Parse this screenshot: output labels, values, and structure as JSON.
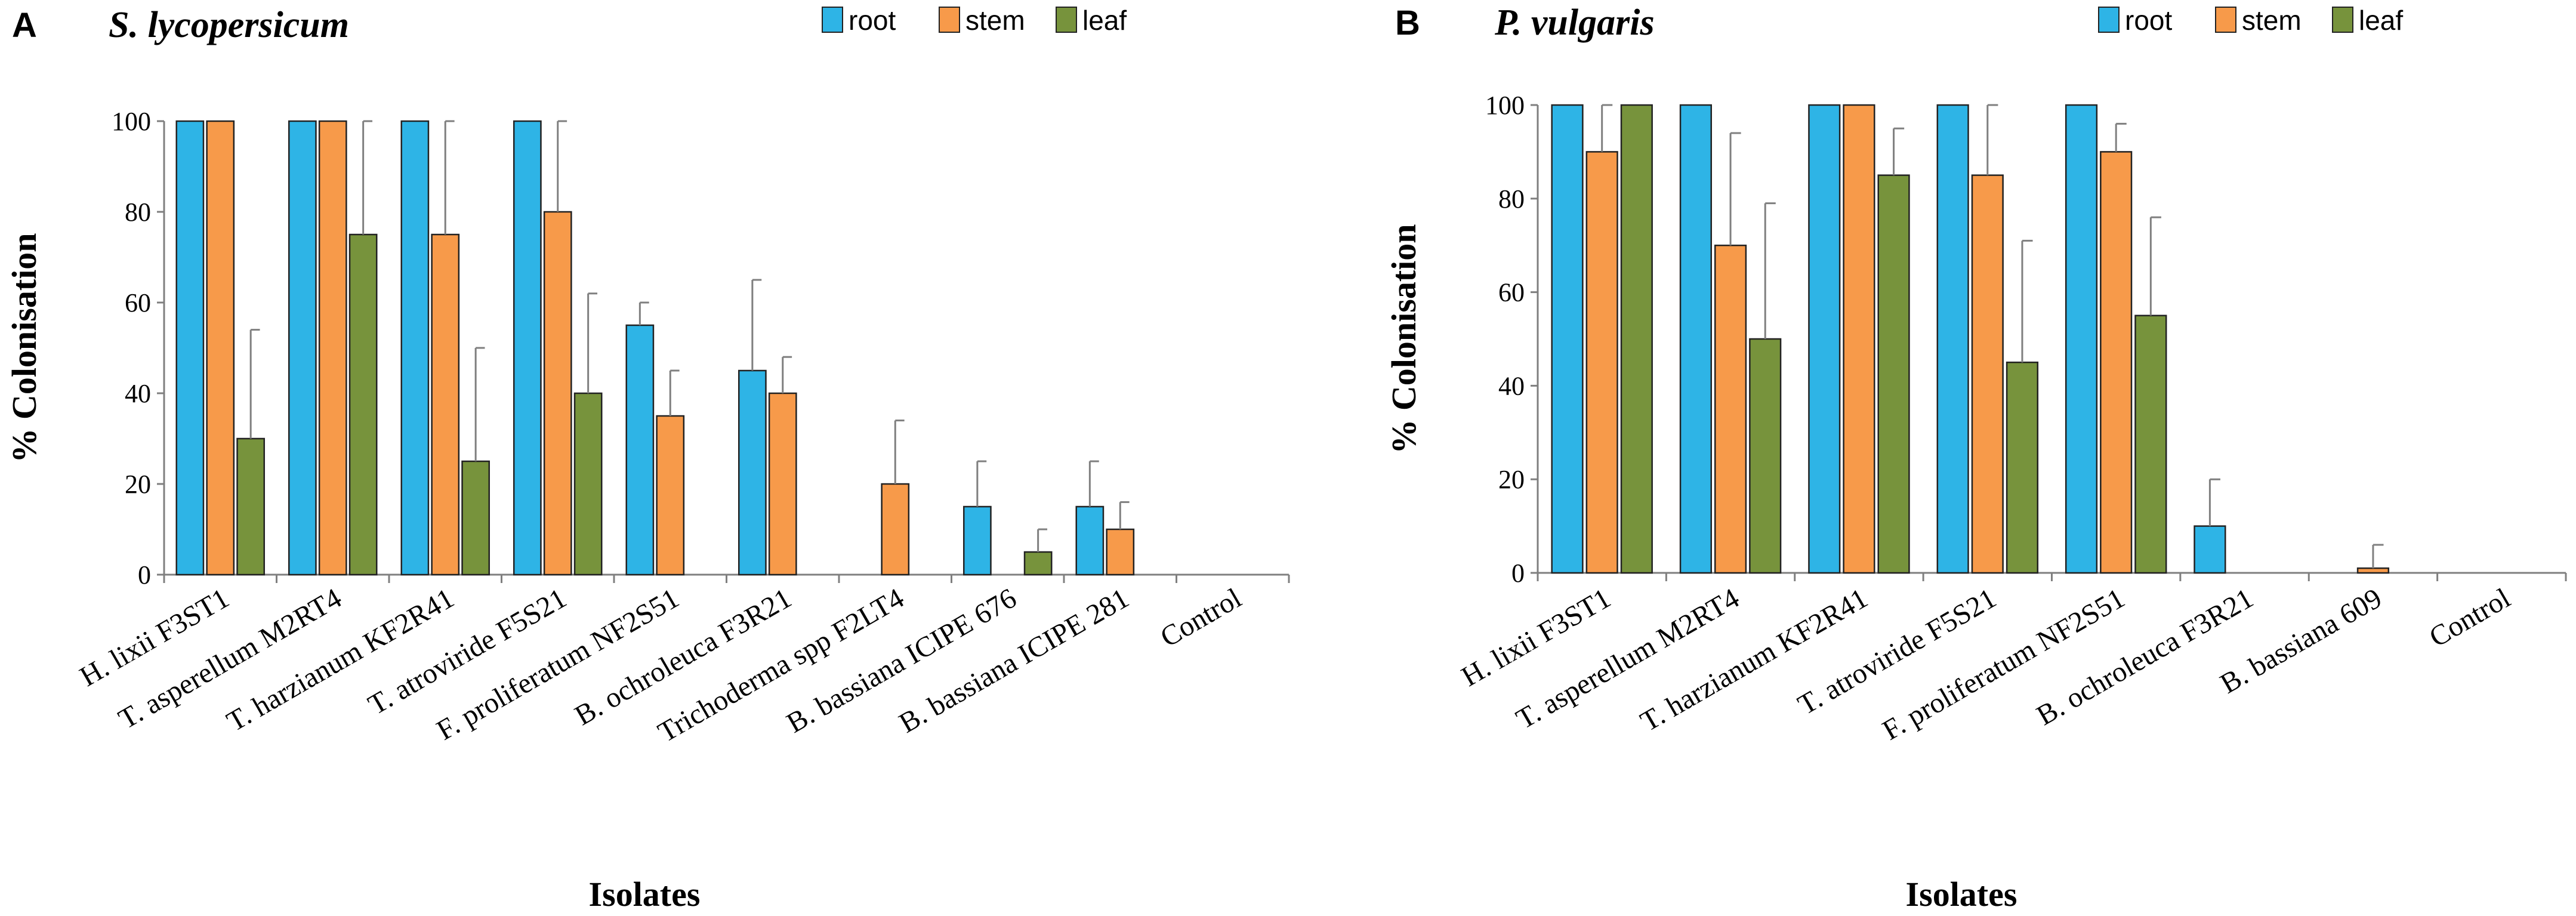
{
  "series_colors": {
    "root": "#2eb4e6",
    "stem": "#f79a4a",
    "leaf": "#77933c"
  },
  "chart_data": [
    {
      "type": "bar",
      "panel_label": "A",
      "title": "S. lycopersicum",
      "xlabel": "Isolates",
      "ylabel": "% Colonisation",
      "ylim": [
        0,
        100
      ],
      "yticks": [
        "0",
        "20",
        "40",
        "60",
        "80",
        "100"
      ],
      "legend": [
        "root",
        "stem",
        "leaf"
      ],
      "categories": [
        "H. lixii F3ST1",
        "T. asperellum M2RT4",
        "T. harzianum KF2R41",
        "T. atroviride F5S21",
        "F. proliferatum NF2S51",
        "B. ochroleuca F3R21",
        "Trichoderma spp F2LT4",
        "B. bassiana ICIPE 676",
        "B. bassiana ICIPE 281",
        "Control"
      ],
      "series": [
        {
          "name": "root",
          "values": [
            100,
            100,
            100,
            100,
            55,
            45,
            0,
            15,
            15,
            0
          ],
          "errors": [
            0,
            0,
            0,
            0,
            5,
            20,
            0,
            10,
            10,
            0
          ]
        },
        {
          "name": "stem",
          "values": [
            100,
            100,
            75,
            80,
            35,
            40,
            20,
            0,
            10,
            0
          ],
          "errors": [
            0,
            0,
            25,
            20,
            10,
            8,
            14,
            0,
            6,
            0
          ]
        },
        {
          "name": "leaf",
          "values": [
            30,
            75,
            25,
            40,
            0,
            0,
            0,
            5,
            0,
            0
          ],
          "errors": [
            24,
            25,
            25,
            22,
            0,
            0,
            0,
            5,
            0,
            0
          ]
        }
      ]
    },
    {
      "type": "bar",
      "panel_label": "B",
      "title": "P. vulgaris",
      "xlabel": "Isolates",
      "ylabel": "% Colonisation",
      "ylim": [
        0,
        100
      ],
      "yticks": [
        "0",
        "20",
        "40",
        "60",
        "80",
        "100"
      ],
      "legend": [
        "root",
        "stem",
        "leaf"
      ],
      "categories": [
        "H. lixii F3ST1",
        "T. asperellum M2RT4",
        "T. harzianum KF2R41",
        "T. atroviride F5S21",
        "F. proliferatum NF2S51",
        "B. ochroleuca F3R21",
        "B. bassiana 609",
        "Control"
      ],
      "series": [
        {
          "name": "root",
          "values": [
            100,
            100,
            100,
            100,
            100,
            10,
            0,
            0
          ],
          "errors": [
            0,
            0,
            0,
            0,
            0,
            10,
            0,
            0
          ]
        },
        {
          "name": "stem",
          "values": [
            90,
            70,
            100,
            85,
            90,
            0,
            1,
            0
          ],
          "errors": [
            10,
            24,
            0,
            15,
            6,
            0,
            5,
            0
          ]
        },
        {
          "name": "leaf",
          "values": [
            100,
            50,
            85,
            45,
            55,
            0,
            0,
            0
          ],
          "errors": [
            0,
            29,
            10,
            26,
            21,
            0,
            0,
            0
          ]
        }
      ]
    }
  ]
}
